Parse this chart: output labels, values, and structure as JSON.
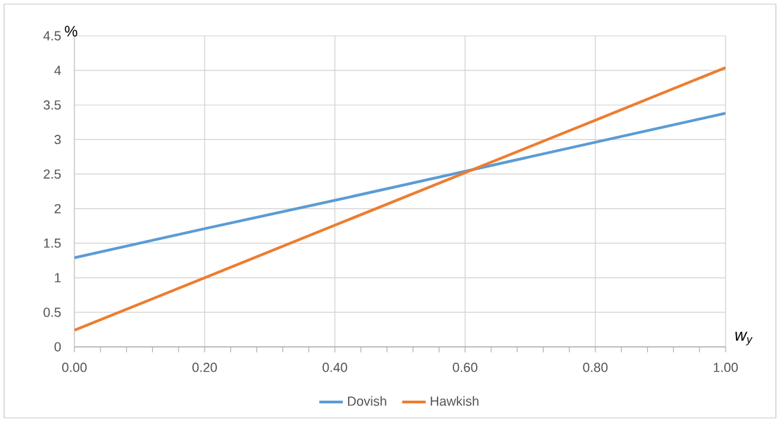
{
  "chart_data": {
    "type": "line",
    "xlabel": "w$_{y}$",
    "ylabel": "%",
    "x": [
      0,
      0.2,
      0.4,
      0.6,
      0.8,
      1.0
    ],
    "series": [
      {
        "name": "Dovish",
        "color": "#5b9bd5",
        "values": [
          1.29,
          1.71,
          2.12,
          2.54,
          2.96,
          3.38
        ]
      },
      {
        "name": "Hawkish",
        "color": "#ed7d31",
        "values": [
          0.24,
          1.0,
          1.76,
          2.52,
          3.28,
          4.04
        ]
      }
    ],
    "xlim": [
      0,
      1
    ],
    "ylim": [
      0,
      4.5
    ],
    "xticks": [
      {
        "value": 0,
        "label": "0.00"
      },
      {
        "value": 0.04,
        "label": null
      },
      {
        "value": 0.08,
        "label": null
      },
      {
        "value": 0.12,
        "label": null
      },
      {
        "value": 0.16,
        "label": null
      },
      {
        "value": 0.2,
        "label": "0.20"
      },
      {
        "value": 0.24,
        "label": null
      },
      {
        "value": 0.28,
        "label": null
      },
      {
        "value": 0.32,
        "label": null
      },
      {
        "value": 0.36,
        "label": null
      },
      {
        "value": 0.4,
        "label": "0.40"
      },
      {
        "value": 0.44,
        "label": null
      },
      {
        "value": 0.48,
        "label": null
      },
      {
        "value": 0.52,
        "label": null
      },
      {
        "value": 0.56,
        "label": null
      },
      {
        "value": 0.6,
        "label": "0.60"
      },
      {
        "value": 0.64,
        "label": null
      },
      {
        "value": 0.68,
        "label": null
      },
      {
        "value": 0.72,
        "label": null
      },
      {
        "value": 0.76,
        "label": null
      },
      {
        "value": 0.8,
        "label": "0.80"
      },
      {
        "value": 0.84,
        "label": null
      },
      {
        "value": 0.88,
        "label": null
      },
      {
        "value": 0.92,
        "label": null
      },
      {
        "value": 0.96,
        "label": null
      },
      {
        "value": 1.0,
        "label": "1.00"
      }
    ],
    "yticks": [
      0,
      0.5,
      1,
      1.5,
      2,
      2.5,
      3,
      3.5,
      4,
      4.5
    ],
    "grid": true,
    "legend": "bottom",
    "marker": "none",
    "line_style": "solid"
  }
}
